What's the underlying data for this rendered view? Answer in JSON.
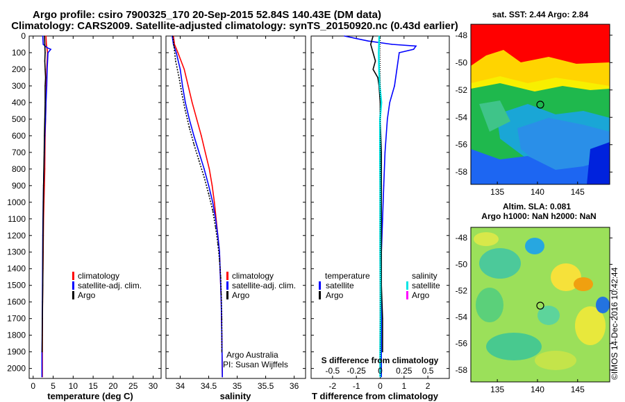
{
  "title_line1": "Argo profile: csiro 7900325_170 20-Sep-2015 52.84S 140.43E (DM data)",
  "title_line2": "Climatology: CARS2009. Satellite-adjusted climatology: synTS_20150920.nc (0.43d earlier)",
  "sst_title": "sat. SST: 2.44 Argo: 2.84",
  "sla_title1": "Altim. SLA: 0.081",
  "sla_title2": "Argo h1000: NaN h2000: NaN",
  "watermark": "©IMOS 14-Dec-2016 10:42:44",
  "credit1": "Argo Australia",
  "credit2": "PI: Susan Wijffels",
  "depth_ticks": [
    "0",
    "100",
    "200",
    "300",
    "400",
    "500",
    "600",
    "700",
    "800",
    "900",
    "1000",
    "1100",
    "1200",
    "1300",
    "1400",
    "1500",
    "1600",
    "1700",
    "1800",
    "1900",
    "2000"
  ],
  "colors": {
    "climatology": "#ff0000",
    "satellite": "#0000ff",
    "argo": "#000000",
    "sat_salinity": "#00e5e5",
    "argo_salinity": "#ff00ff"
  },
  "chart_data": [
    {
      "type": "line",
      "xlabel": "temperature (deg C)",
      "xlim": [
        -1,
        32
      ],
      "ylim": [
        2060,
        0
      ],
      "xticks": [
        "0",
        "5",
        "10",
        "15",
        "20",
        "25",
        "30"
      ],
      "legend": [
        "climatology",
        "satellite-adj. clim.",
        "Argo"
      ],
      "series": [
        {
          "name": "climatology",
          "color": "#ff0000",
          "x": [
            3.2,
            3.3,
            3.6,
            3.4,
            3.3,
            3.2,
            3.1,
            3.0,
            2.95,
            2.9,
            2.8,
            2.7,
            2.6,
            2.55,
            2.5,
            2.45,
            2.4,
            2.35,
            2.3,
            2.3
          ],
          "y": [
            0,
            50,
            100,
            200,
            300,
            400,
            500,
            600,
            700,
            800,
            900,
            1000,
            1100,
            1200,
            1300,
            1400,
            1500,
            1600,
            1800,
            2050
          ]
        },
        {
          "name": "satellite-adj. clim.",
          "color": "#0000ff",
          "x": [
            2.4,
            2.5,
            3.0,
            3.5,
            4.4,
            3.7,
            3.5,
            3.4,
            3.2,
            3.1,
            2.9,
            2.7,
            2.6,
            2.5,
            2.4,
            2.35,
            2.3,
            2.25,
            2.2,
            2.2
          ],
          "y": [
            0,
            50,
            60,
            70,
            80,
            100,
            200,
            300,
            400,
            500,
            600,
            800,
            900,
            1000,
            1200,
            1400,
            1600,
            1800,
            1900,
            2050
          ]
        },
        {
          "name": "Argo",
          "color": "#000000",
          "x": [
            2.84,
            2.9,
            3.0,
            2.9,
            3.0,
            3.1,
            3.0,
            3.0,
            2.9,
            2.8,
            2.75,
            2.6,
            2.5,
            2.45,
            2.4,
            2.3,
            2.25
          ],
          "y": [
            0,
            50,
            100,
            150,
            200,
            250,
            300,
            400,
            500,
            600,
            700,
            900,
            1100,
            1300,
            1500,
            1700,
            1900
          ]
        }
      ]
    },
    {
      "type": "line",
      "xlabel": "salinity",
      "xlim": [
        33.75,
        36.2
      ],
      "ylim": [
        2060,
        0
      ],
      "xticks": [
        "34",
        "34.5",
        "35",
        "35.5",
        "36"
      ],
      "legend": [
        "climatology",
        "satellite-adj. clim.",
        "Argo"
      ],
      "series": [
        {
          "name": "climatology",
          "color": "#ff0000",
          "x": [
            33.88,
            33.9,
            33.96,
            34.07,
            34.14,
            34.21,
            34.29,
            34.37,
            34.44,
            34.51,
            34.56,
            34.6,
            34.63,
            34.66,
            34.69,
            34.7,
            34.71,
            34.72,
            34.73,
            34.74
          ],
          "y": [
            0,
            50,
            100,
            200,
            300,
            400,
            500,
            600,
            700,
            800,
            900,
            1000,
            1100,
            1200,
            1300,
            1400,
            1500,
            1600,
            1800,
            2050
          ]
        },
        {
          "name": "satellite-adj. clim.",
          "color": "#0000ff",
          "x": [
            33.86,
            33.88,
            33.93,
            34.0,
            34.04,
            34.09,
            34.16,
            34.24,
            34.33,
            34.42,
            34.5,
            34.57,
            34.62,
            34.66,
            34.69,
            34.7,
            34.71,
            34.72,
            34.73,
            34.74
          ],
          "y": [
            0,
            50,
            100,
            200,
            300,
            400,
            500,
            600,
            700,
            800,
            900,
            1000,
            1100,
            1200,
            1300,
            1400,
            1500,
            1600,
            1800,
            2050
          ]
        },
        {
          "name": "Argo",
          "color": "#000000",
          "x": [
            33.87,
            33.89,
            33.92,
            33.98,
            34.03,
            34.09,
            34.16,
            34.24,
            34.33,
            34.42,
            34.5,
            34.57,
            34.62,
            34.66,
            34.69,
            34.71,
            34.72,
            34.73,
            34.73
          ],
          "y": [
            0,
            60,
            150,
            250,
            350,
            450,
            550,
            650,
            750,
            850,
            950,
            1050,
            1150,
            1250,
            1350,
            1450,
            1550,
            1700,
            1900
          ]
        }
      ]
    },
    {
      "type": "line",
      "xlabel": "T difference from climatology",
      "xlabel_top": "S difference from climatology",
      "xlim": [
        -2.9,
        2.9
      ],
      "ylim": [
        2060,
        0
      ],
      "xticks": [
        "-2",
        "-1",
        "0",
        "1",
        "2"
      ],
      "xticks_top": [
        "-0.5",
        "-0.25",
        "0",
        "0.25",
        "0.5"
      ],
      "legend_left_title": "temperature",
      "legend_right_title": "salinity",
      "legend_left": [
        "satellite",
        "Argo"
      ],
      "legend_right": [
        "satellite",
        "Argo"
      ],
      "series": [
        {
          "name": "T satellite",
          "color": "#0000ff",
          "x": [
            -1.5,
            -0.5,
            0.5,
            1.5,
            1.4,
            0.8,
            0.7,
            0.6,
            0.4,
            0.3,
            0.2,
            0.15,
            0.1,
            0.05,
            0.05,
            0.05,
            0.05
          ],
          "y": [
            0,
            30,
            50,
            60,
            80,
            100,
            200,
            300,
            400,
            500,
            700,
            900,
            1100,
            1300,
            1500,
            1800,
            2050
          ]
        },
        {
          "name": "T Argo",
          "color": "#000000",
          "x": [
            -0.3,
            -0.4,
            -0.3,
            -0.2,
            -0.3,
            -0.1,
            -0.05,
            0.0,
            0.0,
            0.05,
            0.05,
            0.05,
            0.05,
            0.05,
            0.1,
            0.1
          ],
          "y": [
            0,
            50,
            100,
            150,
            200,
            250,
            300,
            400,
            500,
            700,
            900,
            1100,
            1300,
            1500,
            1700,
            1900
          ]
        },
        {
          "name": "S satellite",
          "color": "#00e5e5",
          "x": [
            -0.04,
            -0.06,
            -0.05,
            -0.02,
            0.05,
            -0.01,
            -0.01,
            0.0,
            0.0,
            0.0,
            0.01,
            0.01,
            0.0,
            0.0
          ],
          "y": [
            0,
            100,
            200,
            300,
            400,
            500,
            700,
            900,
            1100,
            1300,
            1500,
            1700,
            1900,
            2050
          ]
        },
        {
          "name": "S Argo",
          "color": "#ff00ff",
          "x": [],
          "y": []
        }
      ]
    }
  ],
  "maps": [
    {
      "name": "sst-map",
      "lon_ticks": [
        "135",
        "140",
        "145"
      ],
      "lat_ticks": [
        "-48",
        "-50",
        "-52",
        "-54",
        "-56",
        "-58"
      ],
      "marker": {
        "lon": 140.43,
        "lat": -52.84
      }
    },
    {
      "name": "sla-map",
      "lon_ticks": [
        "135",
        "140",
        "145"
      ],
      "lat_ticks": [
        "-48",
        "-50",
        "-52",
        "-54",
        "-56",
        "-58"
      ],
      "marker": {
        "lon": 140.43,
        "lat": -52.84
      }
    }
  ]
}
